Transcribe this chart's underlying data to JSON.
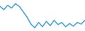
{
  "x": [
    0,
    1,
    2,
    3,
    4,
    5,
    6,
    7,
    8,
    9,
    10,
    11,
    12,
    13,
    14,
    15,
    16,
    17,
    18,
    19,
    20,
    21,
    22
  ],
  "y": [
    68,
    62,
    70,
    65,
    73,
    68,
    58,
    48,
    35,
    28,
    38,
    30,
    40,
    32,
    42,
    34,
    38,
    30,
    36,
    31,
    38,
    35,
    42
  ],
  "line_color": "#4DA6D8",
  "line_width": 1.2,
  "background_color": "#ffffff",
  "ylim": [
    22,
    80
  ],
  "xlim": [
    0,
    22
  ]
}
